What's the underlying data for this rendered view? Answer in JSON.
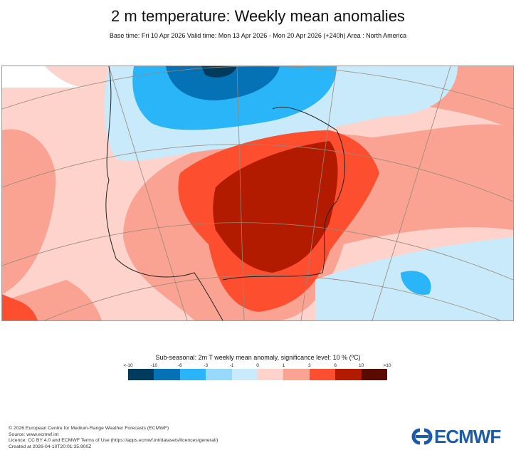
{
  "title": "2 m temperature: Weekly mean anomalies",
  "subtitle": "Base time: Fri 10 Apr 2026 Valid time: Mon 13 Apr 2026 - Mon 20 Apr 2026 (+240h) Area : North America",
  "colorbar": {
    "title": "Sub-seasonal: 2m T weekly mean anomaly, significance level: 10 % (ºC)",
    "labels": [
      "<-10",
      "-10",
      "-6",
      "-3",
      "-1",
      "0",
      "1",
      "3",
      "6",
      "10",
      ">10"
    ],
    "colors": [
      "#003a5c",
      "#0672b6",
      "#29b5f7",
      "#97d9fb",
      "#c9eafb",
      "#fdd3cc",
      "#fba392",
      "#fd4e30",
      "#b31b00",
      "#5a0a00"
    ]
  },
  "footer": {
    "lines": [
      "© 2026 European Centre for Medium-Range Weather Forecasts (ECMWF)",
      "Source: www.ecmwf.int",
      "Licence: CC BY 4.0 and ECMWF Terms of Use (https://apps.ecmwf.int/datasets/licences/general/)",
      "Created at 2026-04-10T20:01:35.900Z"
    ]
  },
  "logo": {
    "text": "ECMWF",
    "color": "#1c5ba8"
  }
}
